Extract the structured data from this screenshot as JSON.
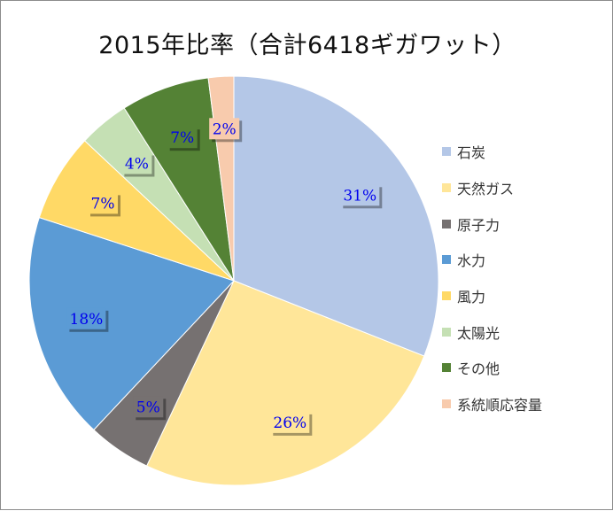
{
  "chart_data": {
    "type": "pie",
    "title": "2015年比率（合計6418ギガワット）",
    "legend_position": "right",
    "slices": [
      {
        "label": "石炭",
        "value": 31,
        "value_label": "31%",
        "color": "#b4c7e7"
      },
      {
        "label": "天然ガス",
        "value": 26,
        "value_label": "26%",
        "color": "#ffe699"
      },
      {
        "label": "原子力",
        "value": 5,
        "value_label": "5%",
        "color": "#767171"
      },
      {
        "label": "水力",
        "value": 18,
        "value_label": "18%",
        "color": "#5b9bd5"
      },
      {
        "label": "風力",
        "value": 7,
        "value_label": "7%",
        "color": "#ffd966"
      },
      {
        "label": "太陽光",
        "value": 4,
        "value_label": "4%",
        "color": "#c5e0b4"
      },
      {
        "label": "その他",
        "value": 7,
        "value_label": "7%",
        "color": "#548235"
      },
      {
        "label": "系統順応容量",
        "value": 2,
        "value_label": "2%",
        "color": "#f8cbad"
      }
    ]
  }
}
